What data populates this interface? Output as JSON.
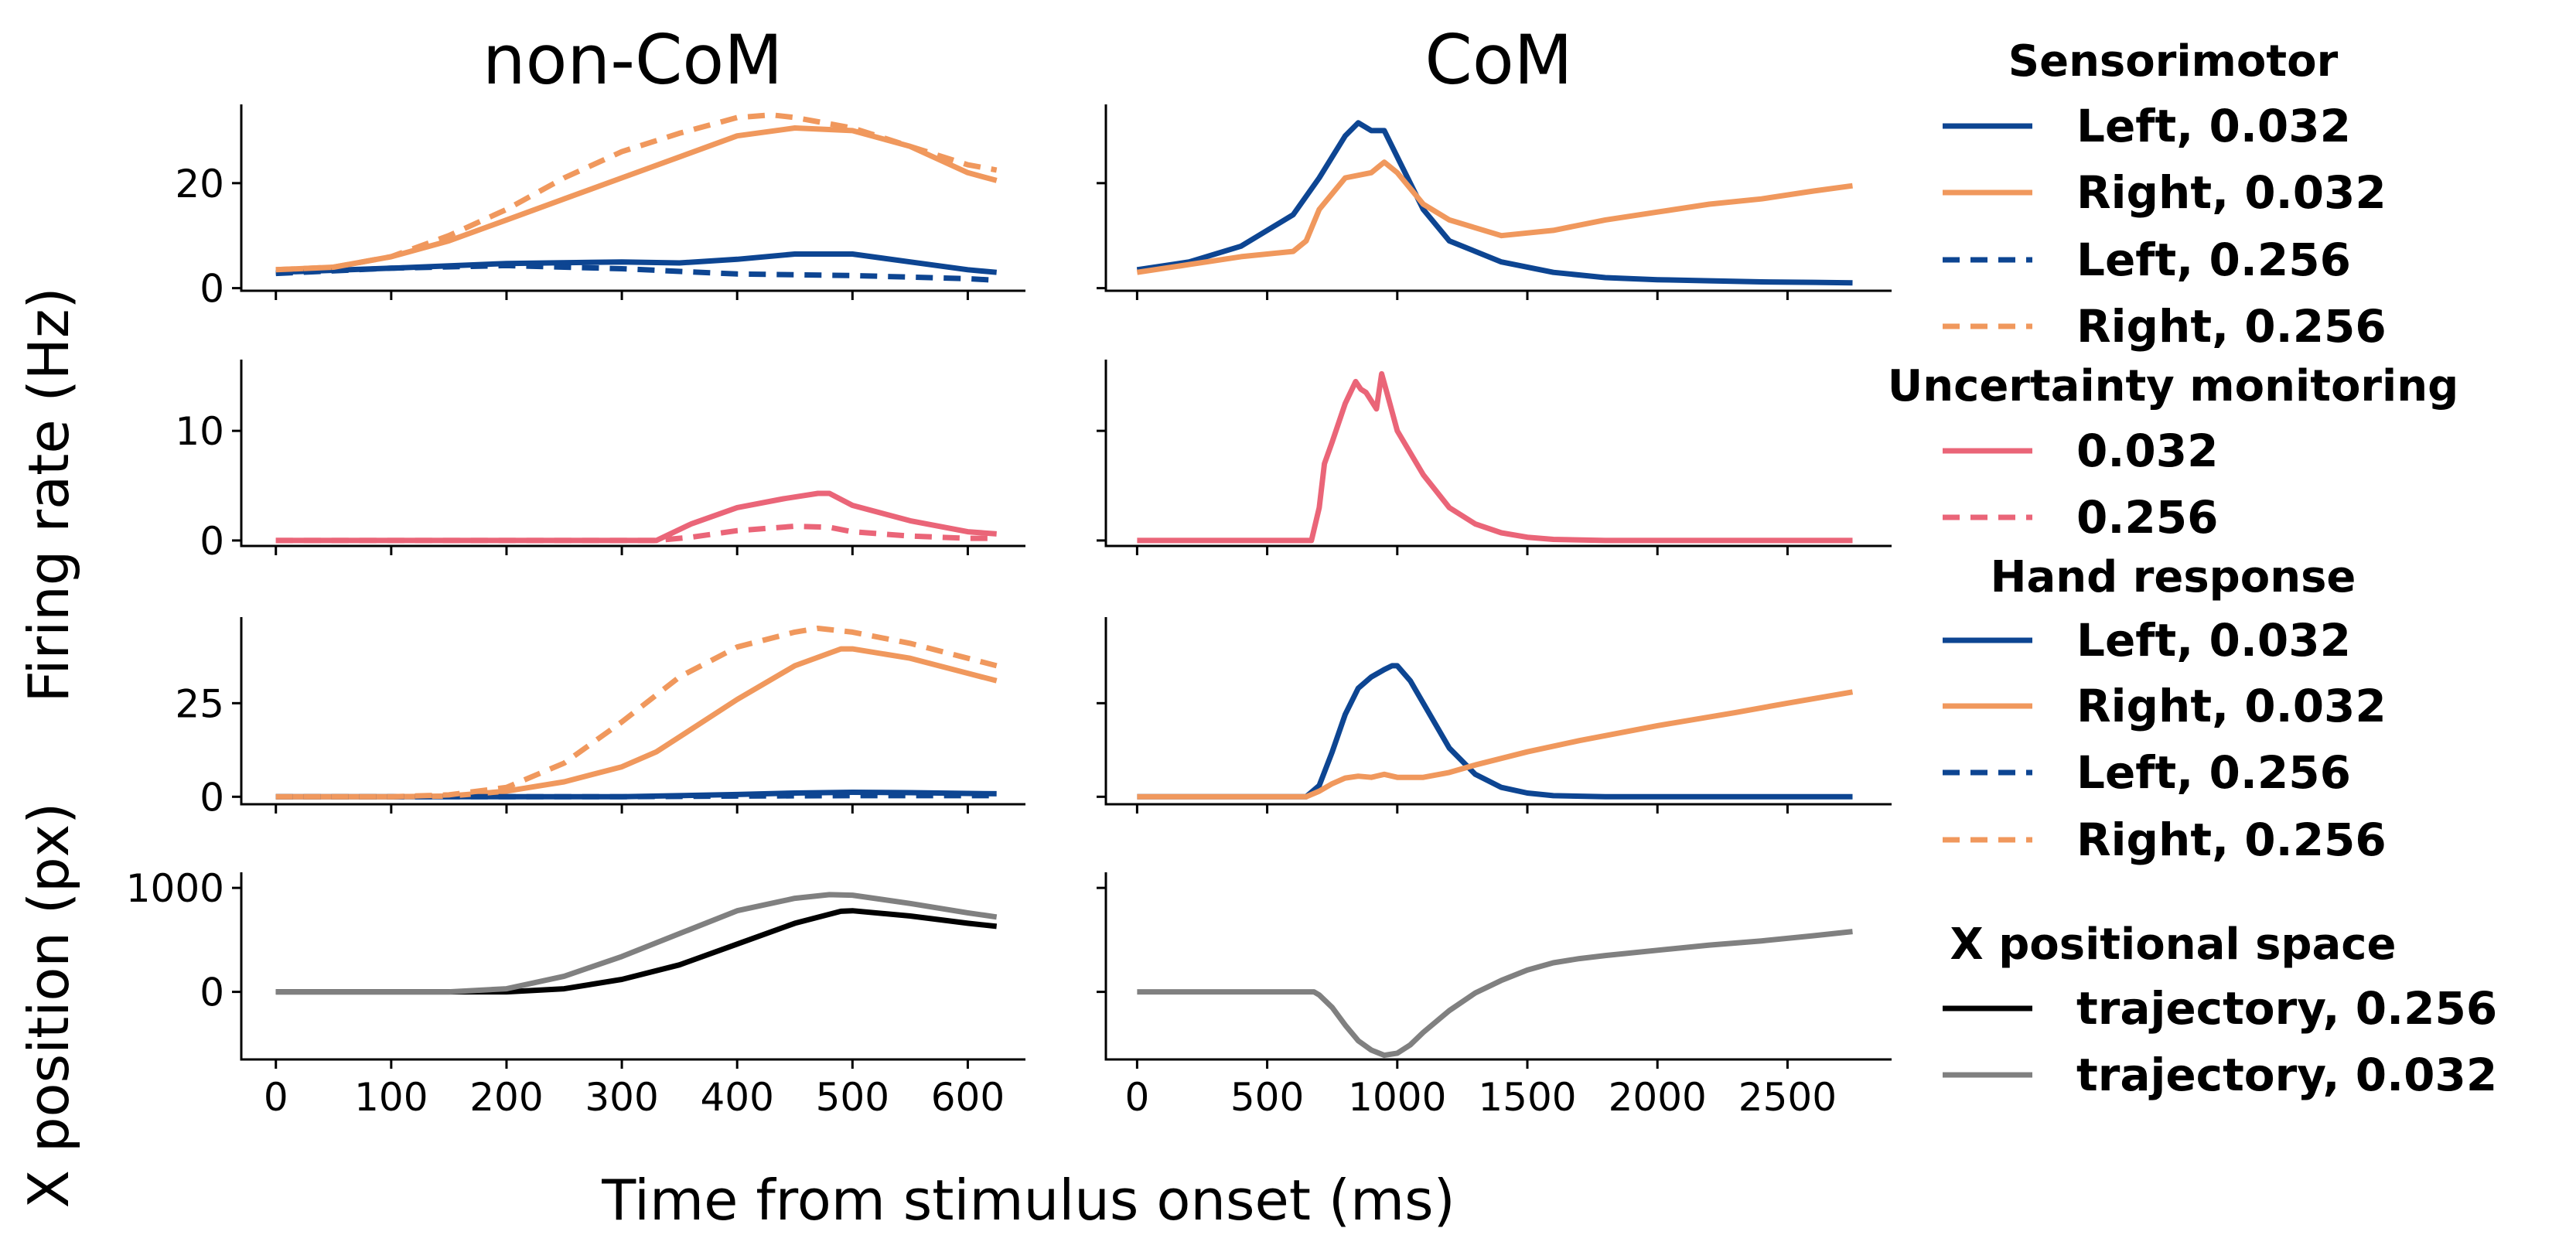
{
  "figure": {
    "column_titles": [
      "non-CoM",
      "CoM"
    ],
    "ylabel_firing": "Firing rate (Hz)",
    "ylabel_position": "X position (px)",
    "xlabel": "Time from stimulus onset (ms)"
  },
  "colors": {
    "left": "#0d4592",
    "right": "#f0985d",
    "uncertainty": "#ea6578",
    "traj_0256": "#000000",
    "traj_0032": "#808080"
  },
  "legend": [
    {
      "title": "Sensorimotor",
      "items": [
        {
          "label": "Left, 0.032",
          "color": "#0d4592",
          "dash": false
        },
        {
          "label": "Right, 0.032",
          "color": "#f0985d",
          "dash": false
        },
        {
          "label": "Left, 0.256",
          "color": "#0d4592",
          "dash": true
        },
        {
          "label": "Right, 0.256",
          "color": "#f0985d",
          "dash": true
        }
      ]
    },
    {
      "title": "Uncertainty monitoring",
      "items": [
        {
          "label": "0.032",
          "color": "#ea6578",
          "dash": false
        },
        {
          "label": "0.256",
          "color": "#ea6578",
          "dash": true
        }
      ]
    },
    {
      "title": "Hand response",
      "items": [
        {
          "label": "Left, 0.032",
          "color": "#0d4592",
          "dash": false
        },
        {
          "label": "Right, 0.032",
          "color": "#f0985d",
          "dash": false
        },
        {
          "label": "Left, 0.256",
          "color": "#0d4592",
          "dash": true
        },
        {
          "label": "Right, 0.256",
          "color": "#f0985d",
          "dash": true
        }
      ]
    },
    {
      "title": "X positional space",
      "items": [
        {
          "label": "trajectory, 0.256",
          "color": "#000000",
          "dash": false
        },
        {
          "label": "trajectory, 0.032",
          "color": "#808080",
          "dash": false
        }
      ]
    }
  ],
  "chart_data": [
    {
      "type": "line",
      "panel": "non-CoM sensorimotor",
      "xlim": [
        -30,
        650
      ],
      "ylim": [
        -0.5,
        35
      ],
      "xticks": [
        0,
        100,
        200,
        300,
        400,
        500,
        600
      ],
      "yticks": [
        0,
        20
      ],
      "series": [
        {
          "color": "#0d4592",
          "dash": false,
          "x": [
            0,
            100,
            200,
            300,
            350,
            400,
            450,
            500,
            550,
            600,
            625
          ],
          "y": [
            3,
            3.8,
            4.7,
            5,
            4.8,
            5.5,
            6.5,
            6.5,
            5,
            3.5,
            3
          ]
        },
        {
          "color": "#f0985d",
          "dash": false,
          "x": [
            0,
            50,
            100,
            150,
            200,
            250,
            300,
            350,
            400,
            450,
            500,
            550,
            600,
            625
          ],
          "y": [
            3.5,
            4,
            6,
            9,
            13,
            17,
            21,
            25,
            29,
            30.5,
            30,
            27,
            22,
            20.5
          ]
        },
        {
          "color": "#0d4592",
          "dash": true,
          "x": [
            0,
            100,
            200,
            300,
            400,
            500,
            600,
            625
          ],
          "y": [
            2.8,
            3.8,
            4.3,
            3.7,
            2.7,
            2.4,
            1.8,
            1.5
          ]
        },
        {
          "color": "#f0985d",
          "dash": true,
          "x": [
            0,
            50,
            100,
            150,
            200,
            250,
            300,
            350,
            400,
            430,
            450,
            500,
            550,
            600,
            625
          ],
          "y": [
            3.5,
            4,
            6,
            10,
            15,
            21,
            26,
            29.5,
            32.5,
            33,
            32.5,
            30.5,
            27,
            23.5,
            22.5
          ]
        }
      ]
    },
    {
      "type": "line",
      "panel": "CoM sensorimotor",
      "xlim": [
        -120,
        2900
      ],
      "ylim": [
        -0.5,
        35
      ],
      "xticks": [
        0,
        500,
        1000,
        1500,
        2000,
        2500
      ],
      "yticks": [
        0,
        20
      ],
      "series": [
        {
          "color": "#0d4592",
          "dash": false,
          "x": [
            0,
            200,
            400,
            600,
            700,
            800,
            850,
            900,
            950,
            1000,
            1100,
            1200,
            1400,
            1600,
            1800,
            2000,
            2200,
            2400,
            2600,
            2750
          ],
          "y": [
            3.5,
            5,
            8,
            14,
            21,
            29,
            31.5,
            30,
            30,
            25,
            15,
            9,
            5,
            3,
            2,
            1.6,
            1.4,
            1.2,
            1.1,
            1
          ]
        },
        {
          "color": "#f0985d",
          "dash": false,
          "x": [
            0,
            200,
            400,
            600,
            650,
            700,
            800,
            900,
            950,
            1000,
            1100,
            1200,
            1400,
            1600,
            1800,
            2000,
            2200,
            2400,
            2600,
            2750
          ],
          "y": [
            3,
            4.5,
            6,
            7,
            9,
            15,
            21,
            22,
            24,
            22,
            16,
            13,
            10,
            11,
            13,
            14.5,
            16,
            17,
            18.5,
            19.5
          ]
        }
      ]
    },
    {
      "type": "line",
      "panel": "non-CoM uncertainty monitoring",
      "xlim": [
        -30,
        650
      ],
      "ylim": [
        -0.5,
        16.5
      ],
      "xticks": [
        0,
        100,
        200,
        300,
        400,
        500,
        600
      ],
      "yticks": [
        0,
        10
      ],
      "series": [
        {
          "color": "#ea6578",
          "dash": false,
          "x": [
            0,
            100,
            200,
            300,
            330,
            340,
            360,
            400,
            440,
            470,
            480,
            500,
            550,
            600,
            625
          ],
          "y": [
            0,
            0,
            0,
            0,
            0,
            0.5,
            1.5,
            3,
            3.8,
            4.3,
            4.3,
            3.2,
            1.8,
            0.8,
            0.6
          ]
        },
        {
          "color": "#ea6578",
          "dash": true,
          "x": [
            0,
            100,
            200,
            300,
            330,
            360,
            400,
            450,
            480,
            500,
            550,
            600,
            625
          ],
          "y": [
            0,
            0,
            0,
            0,
            0,
            0.3,
            0.9,
            1.3,
            1.2,
            0.8,
            0.4,
            0.2,
            0.2
          ]
        }
      ]
    },
    {
      "type": "line",
      "panel": "CoM uncertainty monitoring",
      "xlim": [
        -120,
        2900
      ],
      "ylim": [
        -0.5,
        16.5
      ],
      "xticks": [
        0,
        500,
        1000,
        1500,
        2000,
        2500
      ],
      "yticks": [
        0,
        10
      ],
      "series": [
        {
          "color": "#ea6578",
          "dash": false,
          "x": [
            0,
            300,
            600,
            650,
            670,
            700,
            720,
            750,
            800,
            840,
            860,
            880,
            920,
            940,
            960,
            1000,
            1100,
            1200,
            1300,
            1400,
            1500,
            1600,
            1800,
            2000,
            2200,
            2400,
            2600,
            2750
          ],
          "y": [
            0,
            0,
            0,
            0,
            0,
            3,
            7,
            9,
            12.5,
            14.5,
            13.8,
            13.5,
            12,
            15.2,
            13.5,
            10,
            6,
            3,
            1.5,
            0.7,
            0.3,
            0.1,
            0,
            0,
            0,
            0,
            0,
            0
          ]
        }
      ]
    },
    {
      "type": "line",
      "panel": "non-CoM hand response",
      "xlim": [
        -30,
        650
      ],
      "ylim": [
        -2,
        48
      ],
      "xticks": [
        0,
        100,
        200,
        300,
        400,
        500,
        600
      ],
      "yticks": [
        0,
        25
      ],
      "series": [
        {
          "color": "#0d4592",
          "dash": false,
          "x": [
            0,
            200,
            300,
            400,
            450,
            500,
            550,
            600,
            625
          ],
          "y": [
            0,
            0,
            0,
            0.6,
            1,
            1.2,
            1.1,
            0.9,
            0.8
          ]
        },
        {
          "color": "#f0985d",
          "dash": false,
          "x": [
            0,
            100,
            150,
            200,
            250,
            300,
            330,
            360,
            400,
            450,
            490,
            500,
            550,
            600,
            625
          ],
          "y": [
            0,
            0,
            0.2,
            1.5,
            4,
            8,
            12,
            18,
            26,
            35,
            39.5,
            39.5,
            37,
            33,
            31
          ]
        },
        {
          "color": "#0d4592",
          "dash": true,
          "x": [
            0,
            200,
            300,
            400,
            500,
            600,
            625
          ],
          "y": [
            0,
            0,
            0,
            0.2,
            0.3,
            0.3,
            0.3
          ]
        },
        {
          "color": "#f0985d",
          "dash": true,
          "x": [
            0,
            100,
            150,
            200,
            250,
            300,
            350,
            400,
            450,
            470,
            500,
            550,
            600,
            625
          ],
          "y": [
            0,
            0,
            0.5,
            2.5,
            9,
            20,
            32,
            40,
            44,
            45,
            44,
            41,
            37,
            35
          ]
        }
      ]
    },
    {
      "type": "line",
      "panel": "CoM hand response",
      "xlim": [
        -120,
        2900
      ],
      "ylim": [
        -2,
        48
      ],
      "xticks": [
        0,
        500,
        1000,
        1500,
        2000,
        2500
      ],
      "yticks": [
        0,
        25
      ],
      "series": [
        {
          "color": "#0d4592",
          "dash": false,
          "x": [
            0,
            500,
            650,
            700,
            750,
            800,
            850,
            900,
            950,
            980,
            1000,
            1050,
            1100,
            1200,
            1300,
            1400,
            1500,
            1600,
            1800,
            2000,
            2750
          ],
          "y": [
            0,
            0,
            0,
            3,
            12,
            22,
            29,
            32,
            34,
            35,
            35,
            31,
            25,
            13,
            6,
            2.5,
            1,
            0.3,
            0,
            0,
            0
          ]
        },
        {
          "color": "#f0985d",
          "dash": false,
          "x": [
            0,
            500,
            650,
            700,
            750,
            800,
            850,
            900,
            950,
            1000,
            1100,
            1200,
            1300,
            1500,
            1700,
            2000,
            2300,
            2500,
            2750
          ],
          "y": [
            0,
            0,
            0,
            1.5,
            3.5,
            5,
            5.5,
            5.2,
            6,
            5.2,
            5.2,
            6.5,
            8.5,
            12,
            15,
            19,
            22.5,
            25,
            28
          ]
        }
      ]
    },
    {
      "type": "line",
      "panel": "non-CoM X position",
      "xlim": [
        -30,
        650
      ],
      "ylim": [
        -650,
        1150
      ],
      "xticks": [
        0,
        100,
        200,
        300,
        400,
        500,
        600
      ],
      "yticks": [
        0,
        1000
      ],
      "series": [
        {
          "color": "#000000",
          "dash": false,
          "x": [
            0,
            150,
            200,
            250,
            300,
            350,
            400,
            450,
            490,
            500,
            550,
            600,
            625
          ],
          "y": [
            0,
            0,
            0,
            30,
            120,
            260,
            460,
            660,
            775,
            780,
            730,
            660,
            630
          ]
        },
        {
          "color": "#808080",
          "dash": false,
          "x": [
            0,
            150,
            200,
            250,
            300,
            350,
            400,
            450,
            480,
            500,
            550,
            600,
            625
          ],
          "y": [
            0,
            0,
            30,
            150,
            340,
            560,
            780,
            900,
            935,
            930,
            850,
            760,
            720
          ]
        }
      ]
    },
    {
      "type": "line",
      "panel": "CoM X position",
      "xlim": [
        -120,
        2900
      ],
      "ylim": [
        -650,
        1150
      ],
      "xticks": [
        0,
        500,
        1000,
        1500,
        2000,
        2500
      ],
      "yticks": [
        0,
        1000
      ],
      "series": [
        {
          "color": "#808080",
          "dash": false,
          "x": [
            0,
            500,
            680,
            700,
            750,
            800,
            850,
            900,
            950,
            1000,
            1050,
            1100,
            1200,
            1300,
            1400,
            1500,
            1600,
            1700,
            1800,
            2000,
            2200,
            2400,
            2600,
            2750
          ],
          "y": [
            0,
            0,
            0,
            -30,
            -150,
            -320,
            -470,
            -560,
            -610,
            -590,
            -510,
            -390,
            -180,
            -10,
            110,
            210,
            280,
            320,
            350,
            400,
            450,
            490,
            540,
            580
          ]
        }
      ]
    }
  ]
}
